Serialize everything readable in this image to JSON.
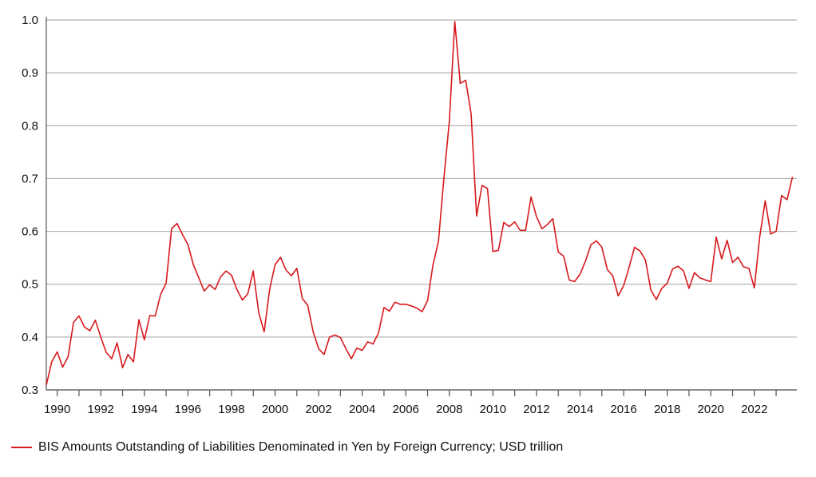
{
  "chart_data": {
    "type": "line",
    "title": "",
    "xlabel": "",
    "ylabel": "",
    "xlim": [
      1989.5,
      2023.95
    ],
    "ylim": [
      0.3,
      1.0
    ],
    "x_ticks": [
      "1990",
      "1992",
      "1994",
      "1996",
      "1998",
      "2000",
      "2002",
      "2004",
      "2006",
      "2008",
      "2010",
      "2012",
      "2014",
      "2016",
      "2018",
      "2020",
      "2022"
    ],
    "y_ticks": [
      "0.3",
      "0.4",
      "0.5",
      "0.6",
      "0.7",
      "0.8",
      "0.9",
      "1.0"
    ],
    "grid": "horizontal",
    "legend_position": "bottom-left",
    "series": [
      {
        "name": "BIS Amounts Outstanding of Liabilities Denominated in Yen by Foreign Currency; USD trillion",
        "color": "#d7191c",
        "x": [
          1989.5,
          1989.75,
          1990.0,
          1990.25,
          1990.5,
          1990.75,
          1991.0,
          1991.25,
          1991.5,
          1991.75,
          1992.0,
          1992.25,
          1992.5,
          1992.75,
          1993.0,
          1993.25,
          1993.5,
          1993.75,
          1994.0,
          1994.25,
          1994.5,
          1994.75,
          1995.0,
          1995.25,
          1995.5,
          1995.75,
          1996.0,
          1996.25,
          1996.5,
          1996.75,
          1997.0,
          1997.25,
          1997.5,
          1997.75,
          1998.0,
          1998.25,
          1998.5,
          1998.75,
          1999.0,
          1999.25,
          1999.5,
          1999.75,
          2000.0,
          2000.25,
          2000.5,
          2000.75,
          2001.0,
          2001.25,
          2001.5,
          2001.75,
          2002.0,
          2002.25,
          2002.5,
          2002.75,
          2003.0,
          2003.25,
          2003.5,
          2003.75,
          2004.0,
          2004.25,
          2004.5,
          2004.75,
          2005.0,
          2005.25,
          2005.5,
          2005.75,
          2006.0,
          2006.25,
          2006.5,
          2006.75,
          2007.0,
          2007.25,
          2007.5,
          2007.75,
          2008.0,
          2008.25,
          2008.5,
          2008.75,
          2009.0,
          2009.25,
          2009.5,
          2009.75,
          2010.0,
          2010.25,
          2010.5,
          2010.75,
          2011.0,
          2011.25,
          2011.5,
          2011.75,
          2012.0,
          2012.25,
          2012.5,
          2012.75,
          2013.0,
          2013.25,
          2013.5,
          2013.75,
          2014.0,
          2014.25,
          2014.5,
          2014.75,
          2015.0,
          2015.25,
          2015.5,
          2015.75,
          2016.0,
          2016.25,
          2016.5,
          2016.75,
          2017.0,
          2017.25,
          2017.5,
          2017.75,
          2018.0,
          2018.25,
          2018.5,
          2018.75,
          2019.0,
          2019.25,
          2019.5,
          2019.75,
          2020.0,
          2020.25,
          2020.5,
          2020.75,
          2021.0,
          2021.25,
          2021.5,
          2021.75,
          2022.0,
          2022.25,
          2022.5,
          2022.75,
          2023.0,
          2023.25,
          2023.5,
          2023.75
        ],
        "y": [
          0.309,
          0.353,
          0.372,
          0.343,
          0.363,
          0.428,
          0.44,
          0.419,
          0.412,
          0.432,
          0.4,
          0.371,
          0.359,
          0.389,
          0.342,
          0.367,
          0.353,
          0.433,
          0.395,
          0.441,
          0.44,
          0.481,
          0.502,
          0.605,
          0.615,
          0.594,
          0.575,
          0.537,
          0.512,
          0.487,
          0.499,
          0.49,
          0.514,
          0.525,
          0.517,
          0.49,
          0.47,
          0.482,
          0.525,
          0.446,
          0.41,
          0.49,
          0.537,
          0.551,
          0.527,
          0.516,
          0.53,
          0.473,
          0.46,
          0.41,
          0.378,
          0.367,
          0.4,
          0.404,
          0.399,
          0.378,
          0.359,
          0.379,
          0.375,
          0.391,
          0.387,
          0.408,
          0.456,
          0.449,
          0.466,
          0.462,
          0.462,
          0.459,
          0.455,
          0.448,
          0.469,
          0.537,
          0.581,
          0.701,
          0.808,
          0.997,
          0.88,
          0.886,
          0.822,
          0.629,
          0.687,
          0.681,
          0.562,
          0.564,
          0.617,
          0.609,
          0.618,
          0.602,
          0.602,
          0.665,
          0.628,
          0.605,
          0.613,
          0.624,
          0.561,
          0.553,
          0.508,
          0.505,
          0.519,
          0.544,
          0.575,
          0.582,
          0.57,
          0.528,
          0.516,
          0.478,
          0.497,
          0.532,
          0.57,
          0.563,
          0.546,
          0.489,
          0.471,
          0.492,
          0.502,
          0.529,
          0.534,
          0.525,
          0.492,
          0.522,
          0.512,
          0.508,
          0.505,
          0.589,
          0.548,
          0.583,
          0.541,
          0.551,
          0.533,
          0.53,
          0.493,
          0.591,
          0.658,
          0.595,
          0.6,
          0.668,
          0.66,
          0.703
        ]
      }
    ]
  }
}
